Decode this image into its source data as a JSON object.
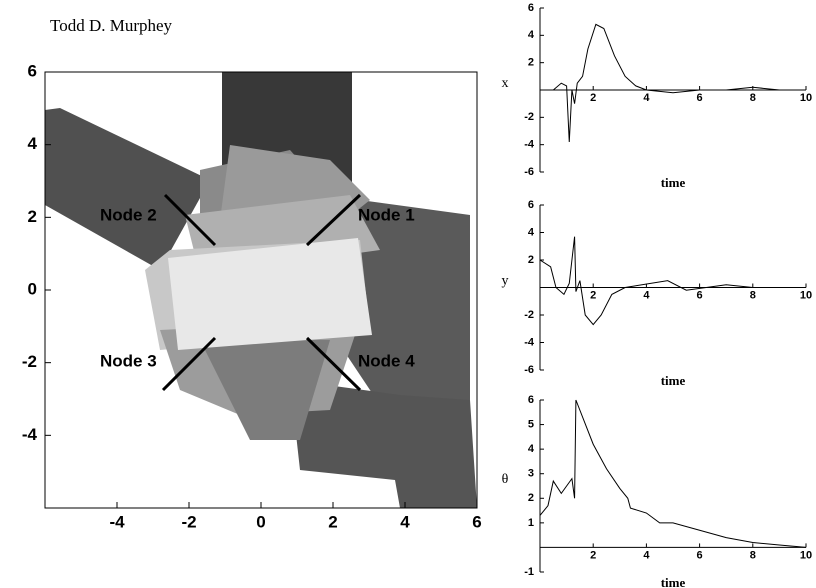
{
  "header": {
    "author": "Todd D. Murphey"
  },
  "chart_data": [
    {
      "type": "diagram",
      "xlim": [
        -6,
        6
      ],
      "ylim": [
        -6,
        6
      ],
      "xticks": [
        -4,
        -2,
        0,
        2,
        4,
        6
      ],
      "yticks": [
        -4,
        -2,
        0,
        2,
        4,
        6
      ],
      "annotations": [
        "Node 1",
        "Node 2",
        "Node 3",
        "Node 4"
      ]
    },
    {
      "type": "line",
      "x_label": "time",
      "y_label": "x",
      "color": "#000000",
      "xlim": [
        0,
        10
      ],
      "ylim": [
        -6,
        6
      ],
      "xticks": [
        2,
        4,
        6,
        8,
        10
      ],
      "yticks": [
        -6,
        -4,
        -2,
        2,
        4,
        6
      ],
      "x": [
        0,
        0.5,
        0.8,
        1,
        1.1,
        1.2,
        1.3,
        1.4,
        1.6,
        1.8,
        2.1,
        2.4,
        2.8,
        3.2,
        3.6,
        4,
        5,
        6,
        7,
        8,
        9,
        10
      ],
      "values": [
        0,
        0,
        0.5,
        0.3,
        -3.8,
        0,
        -1,
        0.5,
        1,
        3,
        4.8,
        4.5,
        2.5,
        1,
        0.3,
        0,
        -0.2,
        0,
        0,
        0.2,
        0,
        0
      ]
    },
    {
      "type": "line",
      "x_label": "time",
      "y_label": "y",
      "color": "#000000",
      "xlim": [
        0,
        10
      ],
      "ylim": [
        -6,
        6
      ],
      "xticks": [
        2,
        4,
        6,
        8,
        10
      ],
      "yticks": [
        -6,
        -4,
        -2,
        2,
        4,
        6
      ],
      "x": [
        0,
        0.4,
        0.6,
        0.9,
        1.1,
        1.3,
        1.35,
        1.5,
        1.7,
        2,
        2.3,
        2.7,
        3.2,
        4.8,
        5.5,
        7,
        8,
        10
      ],
      "values": [
        2,
        1.5,
        0,
        -0.5,
        0.3,
        3.7,
        -0.3,
        0.5,
        -2,
        -2.7,
        -2,
        -0.5,
        0,
        0.5,
        -0.2,
        0.2,
        0,
        0
      ]
    },
    {
      "type": "line",
      "x_label": "time",
      "y_label": "θ",
      "color": "#000000",
      "xlim": [
        0,
        10
      ],
      "ylim": [
        -1,
        6
      ],
      "xticks": [
        2,
        4,
        6,
        8,
        10
      ],
      "yticks": [
        -1,
        1,
        2,
        3,
        4,
        5,
        6
      ],
      "x": [
        0,
        0.3,
        0.5,
        0.8,
        1.2,
        1.3,
        1.35,
        2,
        2.5,
        3,
        3.3,
        3.4,
        4,
        4.5,
        5,
        6,
        7,
        8,
        9,
        10
      ],
      "values": [
        1.3,
        1.7,
        2.7,
        2.2,
        2.8,
        2.0,
        6,
        4.2,
        3.2,
        2.4,
        2.0,
        1.6,
        1.4,
        1.0,
        1.0,
        0.7,
        0.4,
        0.2,
        0.1,
        0
      ]
    }
  ]
}
